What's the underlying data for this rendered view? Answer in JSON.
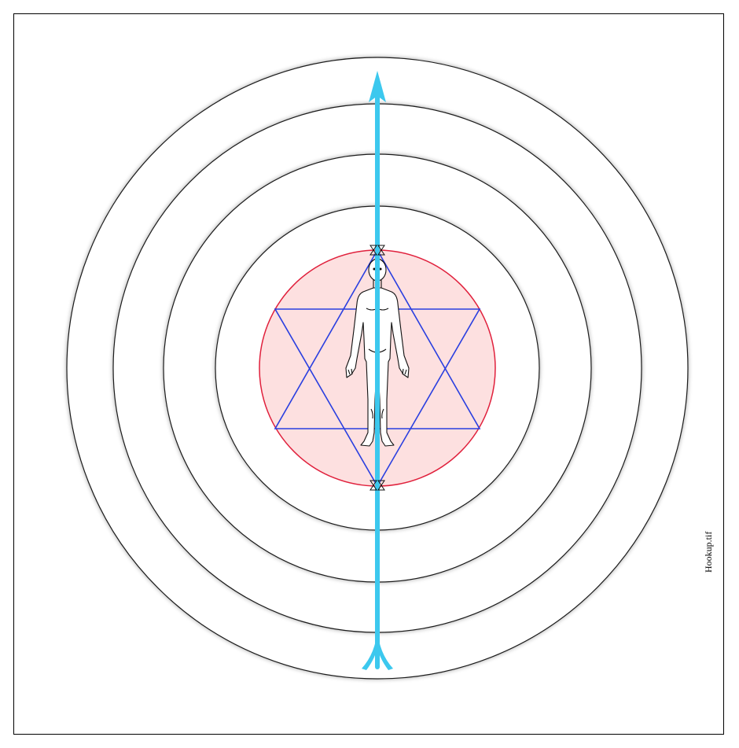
{
  "file_label": "Hookup.tif",
  "colors": {
    "rings": "#1a1a1a",
    "inner_disc_fill": "#fde0e0",
    "inner_disc_stroke": "#e0203c",
    "star": "#2a3fe0",
    "axis": "#3cc8ee",
    "figure": "#111111"
  },
  "icons": {
    "human_figure": "human-figure-icon",
    "arrow_head": "arrow-up-icon",
    "arrow_tail": "arrow-fletching-icon",
    "upper_node": "cone-vertex-icon",
    "lower_node": "cone-vertex-icon"
  }
}
